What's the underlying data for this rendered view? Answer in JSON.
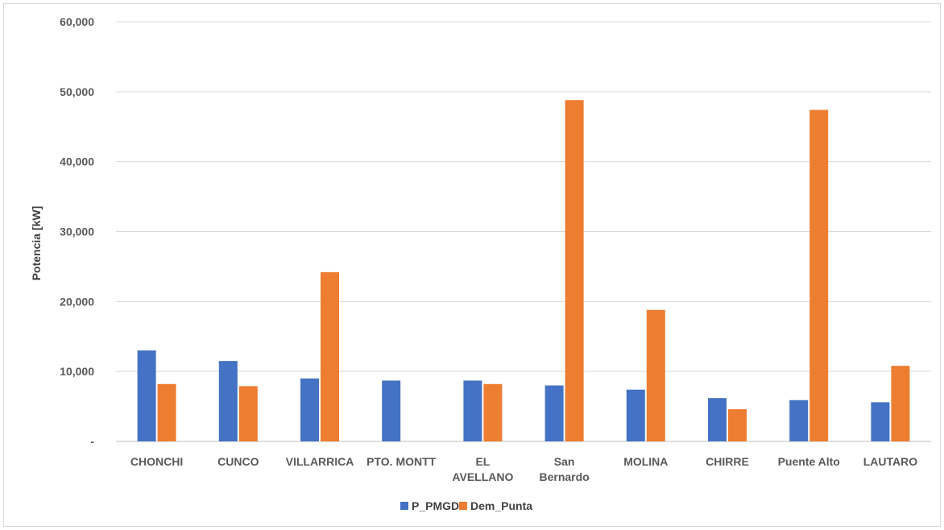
{
  "chart_data": {
    "type": "bar",
    "title": "",
    "xlabel": "",
    "ylabel": "Potencia [kW]",
    "ylim": [
      0,
      60000
    ],
    "ytick_labels": [
      "-",
      "10,000",
      "20,000",
      "30,000",
      "40,000",
      "50,000",
      "60,000"
    ],
    "grid": true,
    "legend_position": "bottom",
    "categories": [
      [
        "CHONCHI"
      ],
      [
        "CUNCO"
      ],
      [
        "VILLARRICA"
      ],
      [
        "PTO. MONTT"
      ],
      [
        "EL",
        "AVELLANO"
      ],
      [
        "San",
        "Bernardo"
      ],
      [
        "MOLINA"
      ],
      [
        "CHIRRE"
      ],
      [
        "Puente Alto"
      ],
      [
        "LAUTARO"
      ]
    ],
    "series": [
      {
        "name": "P_PMGD",
        "color": "#4472C4",
        "values": [
          13000,
          11500,
          9000,
          8700,
          8700,
          8000,
          7400,
          6200,
          5900,
          5600
        ]
      },
      {
        "name": "Dem_Punta",
        "color": "#ED7D31",
        "values": [
          8200,
          7900,
          24200,
          0,
          8200,
          48800,
          18800,
          4600,
          47400,
          10800
        ]
      }
    ]
  }
}
